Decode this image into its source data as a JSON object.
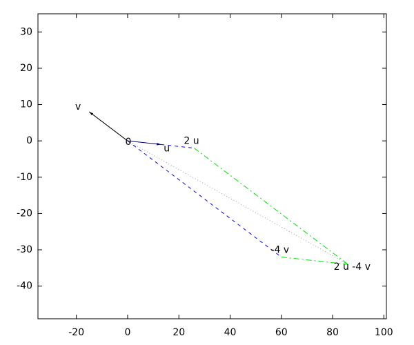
{
  "chart_data": {
    "type": "vector",
    "points": [
      {
        "label": "0",
        "x": 0,
        "y": 0
      },
      {
        "label": "u",
        "x": 13,
        "y": -1
      },
      {
        "label": "v",
        "x": -15,
        "y": 8
      },
      {
        "label": "2 u",
        "x": 26,
        "y": -2
      },
      {
        "label": "-4 v",
        "x": 60,
        "y": -32
      },
      {
        "label": "2 u -4 v",
        "x": 86,
        "y": -34
      }
    ],
    "xlim": [
      -35,
      101
    ],
    "ylim": [
      -49,
      35
    ],
    "xticks": [
      -20,
      0,
      20,
      40,
      60,
      80,
      100
    ],
    "yticks": [
      -40,
      -30,
      -20,
      -10,
      0,
      10,
      20,
      30
    ],
    "grid": false
  }
}
